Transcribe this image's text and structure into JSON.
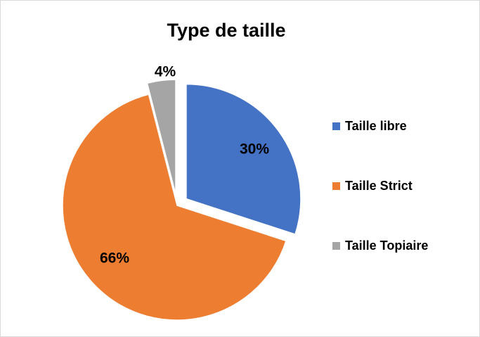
{
  "chart_data": {
    "type": "pie",
    "title": "Type de taille",
    "categories": [
      "Taille libre",
      "Taille Strict",
      "Taille Topiaire"
    ],
    "values": [
      30,
      66,
      4
    ],
    "value_labels": [
      "30%",
      "66%",
      "4%"
    ],
    "colors": [
      "#4472c4",
      "#ed7d31",
      "#a5a5a5"
    ],
    "legend": "right"
  }
}
